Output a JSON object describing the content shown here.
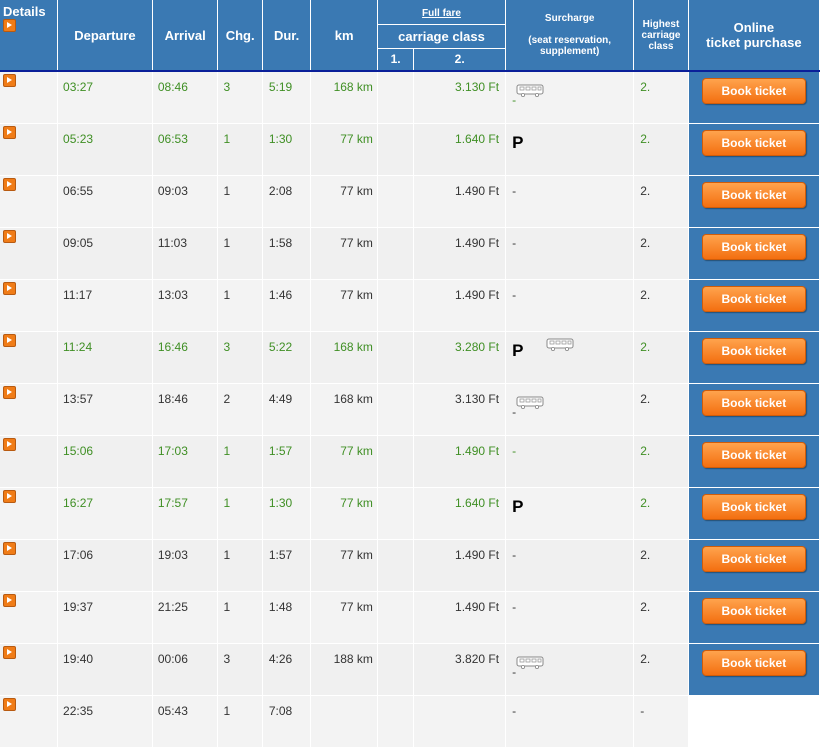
{
  "header": {
    "details": "Details",
    "departure": "Departure",
    "arrival": "Arrival",
    "changes": "Chg.",
    "duration": "Dur.",
    "km": "km",
    "full_fare": "Full fare",
    "carriage_class": "carriage class",
    "class1": "1.",
    "class2": "2.",
    "surcharge": "Surcharge",
    "surcharge_note": "(seat reservation, supplement)",
    "highest_class_1": "Highest",
    "highest_class_2": "carriage",
    "highest_class_3": "class",
    "online_1": "Online",
    "online_2": "ticket purchase"
  },
  "colors": {
    "header_bg": "#3a79b3",
    "green_text": "#3f8f24",
    "button": "#f36f10"
  },
  "book_label": "Book ticket",
  "rows": [
    {
      "dep": "03:27",
      "arr": "08:46",
      "chg": "3",
      "dur": "5:19",
      "km": "168 km",
      "f2": "3.130 Ft",
      "sur": "-",
      "icons": [
        "bus-icon"
      ],
      "cls": "2.",
      "green": true,
      "book": true
    },
    {
      "dep": "05:23",
      "arr": "06:53",
      "chg": "1",
      "dur": "1:30",
      "km": "77 km",
      "f2": "1.640 Ft",
      "sur": "",
      "icons": [
        "p-icon"
      ],
      "cls": "2.",
      "green": true,
      "book": true
    },
    {
      "dep": "06:55",
      "arr": "09:03",
      "chg": "1",
      "dur": "2:08",
      "km": "77 km",
      "f2": "1.490 Ft",
      "sur": "-",
      "icons": [],
      "cls": "2.",
      "green": false,
      "book": true
    },
    {
      "dep": "09:05",
      "arr": "11:03",
      "chg": "1",
      "dur": "1:58",
      "km": "77 km",
      "f2": "1.490 Ft",
      "sur": "-",
      "icons": [],
      "cls": "2.",
      "green": false,
      "book": true
    },
    {
      "dep": "11:17",
      "arr": "13:03",
      "chg": "1",
      "dur": "1:46",
      "km": "77 km",
      "f2": "1.490 Ft",
      "sur": "-",
      "icons": [],
      "cls": "2.",
      "green": false,
      "book": true
    },
    {
      "dep": "11:24",
      "arr": "16:46",
      "chg": "3",
      "dur": "5:22",
      "km": "168 km",
      "f2": "3.280 Ft",
      "sur": "",
      "icons": [
        "p-icon",
        "bus-icon"
      ],
      "cls": "2.",
      "green": true,
      "book": true
    },
    {
      "dep": "13:57",
      "arr": "18:46",
      "chg": "2",
      "dur": "4:49",
      "km": "168 km",
      "f2": "3.130 Ft",
      "sur": "-",
      "icons": [
        "bus-icon"
      ],
      "cls": "2.",
      "green": false,
      "book": true
    },
    {
      "dep": "15:06",
      "arr": "17:03",
      "chg": "1",
      "dur": "1:57",
      "km": "77 km",
      "f2": "1.490 Ft",
      "sur": "-",
      "icons": [],
      "cls": "2.",
      "green": true,
      "book": true
    },
    {
      "dep": "16:27",
      "arr": "17:57",
      "chg": "1",
      "dur": "1:30",
      "km": "77 km",
      "f2": "1.640 Ft",
      "sur": "",
      "icons": [
        "p-icon"
      ],
      "cls": "2.",
      "green": true,
      "book": true
    },
    {
      "dep": "17:06",
      "arr": "19:03",
      "chg": "1",
      "dur": "1:57",
      "km": "77 km",
      "f2": "1.490 Ft",
      "sur": "-",
      "icons": [],
      "cls": "2.",
      "green": false,
      "book": true
    },
    {
      "dep": "19:37",
      "arr": "21:25",
      "chg": "1",
      "dur": "1:48",
      "km": "77 km",
      "f2": "1.490 Ft",
      "sur": "-",
      "icons": [],
      "cls": "2.",
      "green": false,
      "book": true
    },
    {
      "dep": "19:40",
      "arr": "00:06",
      "chg": "3",
      "dur": "4:26",
      "km": "188 km",
      "f2": "3.820 Ft",
      "sur": "-",
      "icons": [
        "bus-icon"
      ],
      "cls": "2.",
      "green": false,
      "book": true
    },
    {
      "dep": "22:35",
      "arr": "05:43",
      "chg": "1",
      "dur": "7:08",
      "km": "",
      "f2": "",
      "sur": "-",
      "icons": [],
      "cls": "-",
      "green": false,
      "book": false
    }
  ]
}
